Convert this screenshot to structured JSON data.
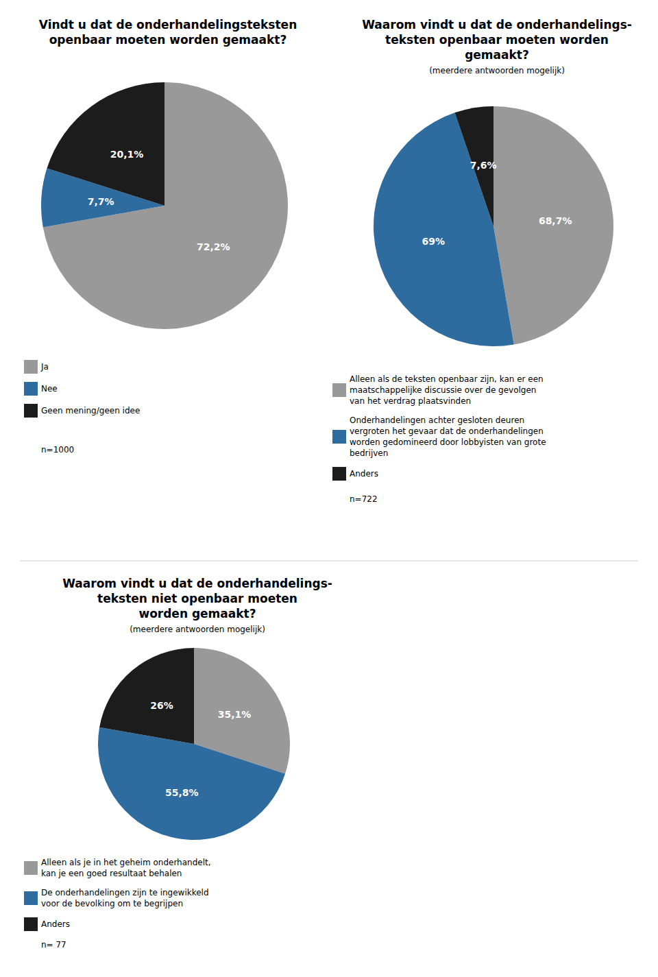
{
  "chart_data": [
    {
      "type": "pie",
      "title": "Vindt u dat de onderhandelingsteksten\nopenbaar moeten worden gemaakt?",
      "categories": [
        "Ja",
        "Nee",
        "Geen mening/geen idee"
      ],
      "values": [
        72.2,
        7.7,
        20.1
      ],
      "value_labels": [
        "72,2%",
        "7,7%",
        "20,1%"
      ],
      "colors": [
        "#999999",
        "#2E6B9E",
        "#1c1c1c"
      ],
      "data_labels": true,
      "legend": "bottom",
      "annotations": [
        "n=1000"
      ]
    },
    {
      "type": "pie",
      "title": "Waarom vindt u dat de onderhandelings-\nteksten openbaar moeten worden\ngemaakt?",
      "subtitle": "(meerdere antwoorden mogelijk)",
      "categories": [
        "Alleen als de teksten openbaar zijn, kan er een\nmaatschappelijke discussie over de gevolgen\nvan het verdrag plaatsvinden",
        "Onderhandelingen achter gesloten deuren\nvergroten het gevaar dat de onderhandelingen\nworden gedomineerd door lobbyisten van grote\nbedrijven",
        "Anders"
      ],
      "values": [
        68.7,
        69.0,
        7.6
      ],
      "value_labels": [
        "68,7%",
        "69%",
        "7,6%"
      ],
      "colors": [
        "#999999",
        "#2E6B9E",
        "#1c1c1c"
      ],
      "data_labels": true,
      "legend": "bottom",
      "annotations": [
        "n=722"
      ]
    },
    {
      "type": "pie",
      "title": "Waarom vindt u dat de onderhandelings-\nteksten niet openbaar moeten\nworden gemaakt?",
      "subtitle": "(meerdere antwoorden mogelijk)",
      "categories": [
        "Alleen als je in het geheim onderhandelt,\nkan je een goed resultaat behalen",
        "De onderhandelingen zijn te ingewikkeld\nvoor de bevolking om te begrijpen",
        "Anders"
      ],
      "values": [
        35.1,
        55.8,
        26.0
      ],
      "value_labels": [
        "35,1%",
        "55,8%",
        "26%"
      ],
      "colors": [
        "#999999",
        "#2E6B9E",
        "#1c1c1c"
      ],
      "data_labels": true,
      "legend": "bottom",
      "annotations": [
        "n= 77"
      ]
    }
  ]
}
